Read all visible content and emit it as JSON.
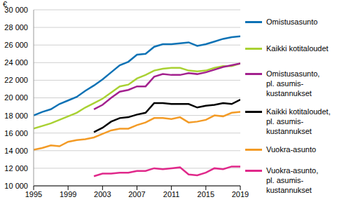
{
  "chart_data": {
    "type": "line",
    "x": [
      1995,
      1996,
      1997,
      1998,
      1999,
      2000,
      2001,
      2002,
      2003,
      2004,
      2005,
      2006,
      2007,
      2008,
      2009,
      2010,
      2011,
      2012,
      2013,
      2014,
      2015,
      2016,
      2017,
      2018,
      2019
    ],
    "xlim": [
      1995,
      2019
    ],
    "xticks": [
      1995,
      1999,
      2003,
      2007,
      2011,
      2015,
      2019
    ],
    "ylim": [
      10000,
      30000
    ],
    "yticks": [
      {
        "value": 10000,
        "label": "10 000"
      },
      {
        "value": 12000,
        "label": "12 000"
      },
      {
        "value": 14000,
        "label": "14 000"
      },
      {
        "value": 16000,
        "label": "16 000"
      },
      {
        "value": 18000,
        "label": "18 000"
      },
      {
        "value": 20000,
        "label": "20 000"
      },
      {
        "value": 22000,
        "label": "22 000"
      },
      {
        "value": 24000,
        "label": "24 000"
      },
      {
        "value": 26000,
        "label": "26 000"
      },
      {
        "value": 28000,
        "label": "28 000"
      },
      {
        "value": 30000,
        "label": "30 000"
      }
    ],
    "axis_label": "€",
    "grid": true,
    "legend": "right",
    "series": [
      {
        "name": "Omistusasunto",
        "color": "#0d72b5",
        "values": [
          18000,
          18400,
          18700,
          19300,
          19700,
          20100,
          20800,
          21400,
          22100,
          22900,
          23700,
          24100,
          24900,
          25000,
          25800,
          26100,
          26100,
          26200,
          26300,
          25900,
          26100,
          26400,
          26700,
          26900,
          27000
        ]
      },
      {
        "name": "Kaikki kotitaloudet",
        "color": "#a9d133",
        "values": [
          16500,
          16800,
          17100,
          17500,
          17900,
          18300,
          18900,
          19400,
          19900,
          20600,
          21300,
          21500,
          22200,
          22600,
          23100,
          23300,
          23400,
          23400,
          23100,
          23000,
          23100,
          23400,
          23600,
          23600,
          23900
        ]
      },
      {
        "name": "Omistusasunto,\npl. asumis-\nkustannukset",
        "color": "#a3218e",
        "values": [
          null,
          null,
          null,
          null,
          null,
          null,
          null,
          18700,
          19200,
          20000,
          20700,
          20900,
          21300,
          21300,
          22400,
          22700,
          22600,
          22600,
          22800,
          22700,
          22900,
          23200,
          23500,
          23700,
          23900
        ]
      },
      {
        "name": "Kaikki kotitaloudet,\npl. asumis-\nkustannukset",
        "color": "#000000",
        "values": [
          null,
          null,
          null,
          null,
          null,
          null,
          null,
          16100,
          16600,
          17300,
          17700,
          17800,
          18100,
          18300,
          19400,
          19400,
          19300,
          19300,
          19300,
          18900,
          19100,
          19200,
          19400,
          19300,
          19800
        ]
      },
      {
        "name": "Vuokra-asunto",
        "color": "#f39b26",
        "values": [
          14100,
          14300,
          14600,
          14500,
          15000,
          15200,
          15300,
          15500,
          15900,
          16300,
          16500,
          16500,
          16900,
          17200,
          17700,
          17700,
          17600,
          17800,
          17200,
          17300,
          17500,
          18000,
          17900,
          18300,
          18400
        ]
      },
      {
        "name": "Vuokra-asunto,\npl. asumis-\nkustannukset",
        "color": "#e0288a",
        "values": [
          null,
          null,
          null,
          null,
          null,
          null,
          null,
          11100,
          11400,
          11400,
          11500,
          11500,
          11700,
          11700,
          12000,
          11900,
          12000,
          12100,
          11300,
          11200,
          11500,
          12000,
          11900,
          12200,
          12200
        ]
      }
    ]
  }
}
